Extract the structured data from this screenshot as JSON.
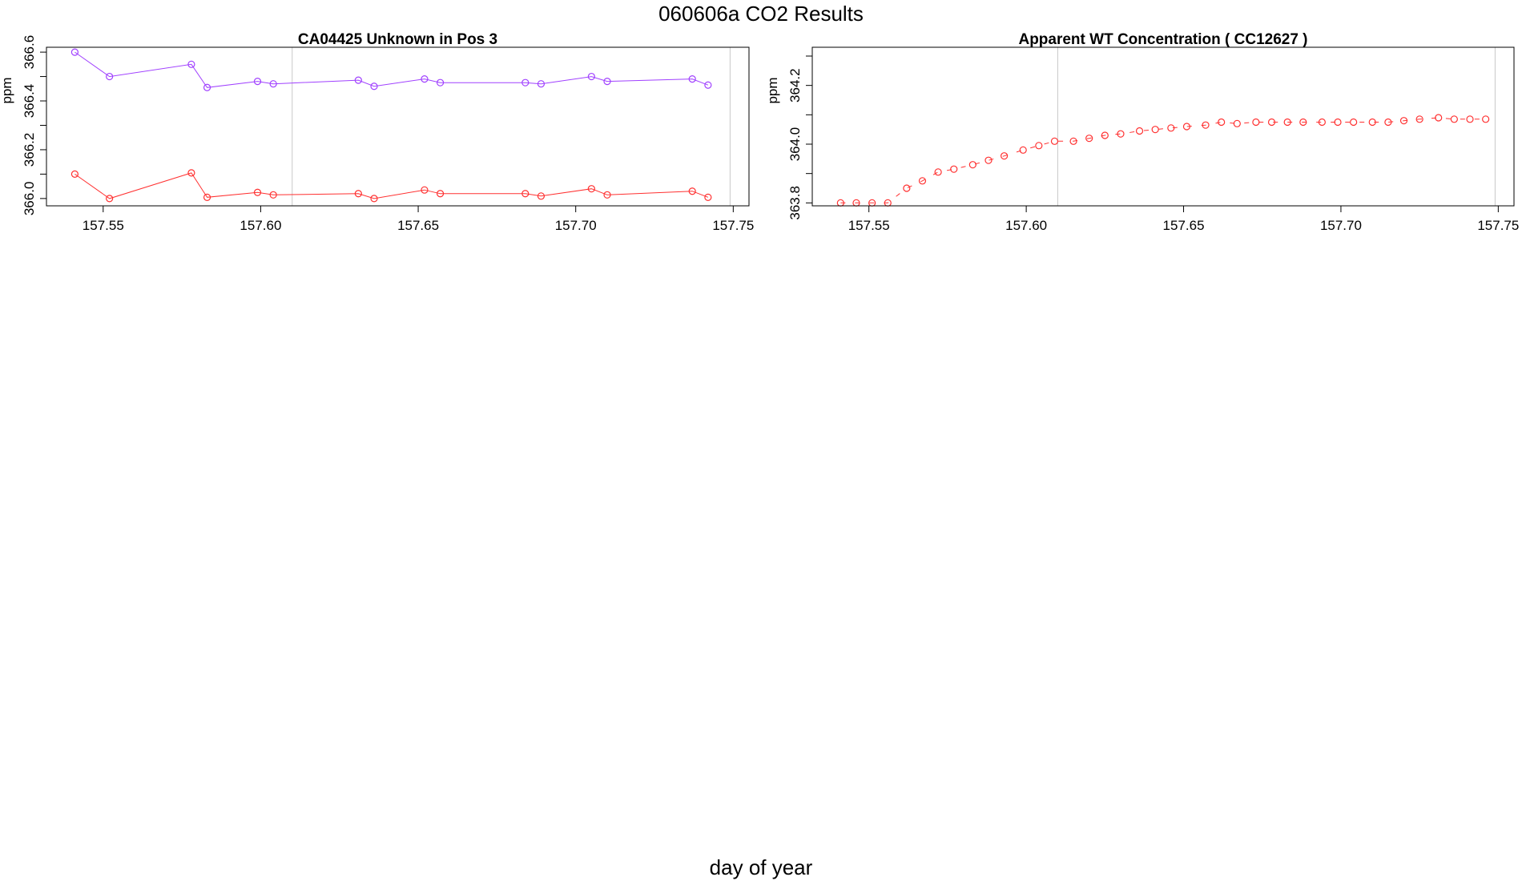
{
  "figure": {
    "title": "060606a  CO2 Results",
    "xlabel": "day of year"
  },
  "chart_data": [
    {
      "type": "line",
      "title": "CA04425    Unknown in Pos 3",
      "ylabel": "ppm",
      "xlim": [
        157.532,
        157.755
      ],
      "ylim": [
        365.97,
        366.62
      ],
      "xticks": [
        "157.55",
        "157.60",
        "157.65",
        "157.70",
        "157.75"
      ],
      "xtick_values": [
        157.55,
        157.6,
        157.65,
        157.7,
        157.75
      ],
      "yticks": [
        "366.0",
        "366.2",
        "366.4",
        "366.6"
      ],
      "ytick_values": [
        366.0,
        366.2,
        366.4,
        366.6
      ],
      "ytick_minor": [
        366.1,
        366.3,
        366.5
      ],
      "vlines": [
        157.61,
        157.749
      ],
      "series": [
        {
          "color": "#a040ff",
          "style": "line-points",
          "x": [
            157.541,
            157.552,
            157.578,
            157.583,
            157.599,
            157.604,
            157.631,
            157.636,
            157.652,
            157.657,
            157.684,
            157.689,
            157.705,
            157.71,
            157.737,
            157.742
          ],
          "y": [
            366.6,
            366.5,
            366.55,
            366.455,
            366.48,
            366.47,
            366.485,
            366.46,
            366.49,
            366.475,
            366.475,
            366.47,
            366.5,
            366.48,
            366.49,
            366.465
          ]
        },
        {
          "color": "#ff3030",
          "style": "line-points",
          "x": [
            157.541,
            157.552,
            157.578,
            157.583,
            157.599,
            157.604,
            157.631,
            157.636,
            157.652,
            157.657,
            157.684,
            157.689,
            157.705,
            157.71,
            157.737,
            157.742
          ],
          "y": [
            366.1,
            366.0,
            366.105,
            366.005,
            366.025,
            366.015,
            366.02,
            366.0,
            366.035,
            366.02,
            366.02,
            366.01,
            366.04,
            366.015,
            366.03,
            366.005
          ]
        }
      ]
    },
    {
      "type": "scatter",
      "title": "Apparent WT Concentration ( CC12627 )",
      "ylabel": "ppm",
      "xlim": [
        157.532,
        157.755
      ],
      "ylim": [
        363.79,
        364.33
      ],
      "xticks": [
        "157.55",
        "157.60",
        "157.65",
        "157.70",
        "157.75"
      ],
      "xtick_values": [
        157.55,
        157.6,
        157.65,
        157.7,
        157.75
      ],
      "yticks": [
        "363.8",
        "364.0",
        "364.2"
      ],
      "ytick_values": [
        363.8,
        364.0,
        364.2
      ],
      "ytick_minor": [
        363.9,
        364.1,
        364.3
      ],
      "vlines": [
        157.61,
        157.749
      ],
      "series": [
        {
          "color": "#ff3030",
          "style": "points-dashed",
          "x": [
            157.541,
            157.546,
            157.551,
            157.556,
            157.562,
            157.567,
            157.572,
            157.577,
            157.583,
            157.588,
            157.593,
            157.599,
            157.604,
            157.609,
            157.615,
            157.62,
            157.625,
            157.63,
            157.636,
            157.641,
            157.646,
            157.651,
            157.657,
            157.662,
            157.667,
            157.673,
            157.678,
            157.683,
            157.688,
            157.694,
            157.699,
            157.704,
            157.71,
            157.715,
            157.72,
            157.725,
            157.731,
            157.736,
            157.741,
            157.746
          ],
          "y": [
            363.8,
            363.8,
            363.8,
            363.8,
            363.85,
            363.875,
            363.905,
            363.915,
            363.93,
            363.945,
            363.96,
            363.98,
            363.995,
            364.01,
            364.01,
            364.02,
            364.03,
            364.035,
            364.045,
            364.05,
            364.055,
            364.06,
            364.065,
            364.075,
            364.07,
            364.075,
            364.075,
            364.075,
            364.075,
            364.075,
            364.075,
            364.075,
            364.075,
            364.075,
            364.08,
            364.085,
            364.09,
            364.085,
            364.085,
            364.085
          ]
        }
      ]
    }
  ]
}
